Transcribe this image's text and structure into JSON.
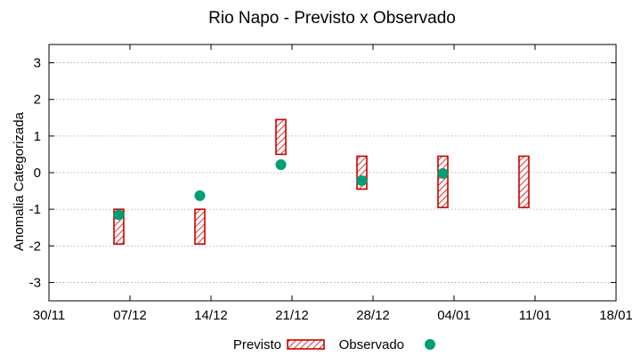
{
  "chart_data": {
    "type": "range_and_scatter",
    "title": "Rio Napo - Previsto x Observado",
    "xlabel": "",
    "ylabel": "Anomalia Categorizada",
    "x_ticks": [
      "30/11",
      "07/12",
      "14/12",
      "21/12",
      "28/12",
      "04/01",
      "11/01",
      "18/01"
    ],
    "y_ticks": [
      "3",
      "2",
      "1",
      "0",
      "-1",
      "-2",
      "-3"
    ],
    "ylim": [
      -3.5,
      3.5
    ],
    "grid": "horizontal dotted",
    "legend_position": "bottom",
    "series": [
      {
        "name": "Previsto",
        "style": "hatched-box",
        "color": "#cc0000",
        "points": [
          {
            "x": "07/12",
            "low": -1.95,
            "high": -1.0
          },
          {
            "x": "14/12",
            "low": -1.95,
            "high": -1.0
          },
          {
            "x": "21/12",
            "low": 0.5,
            "high": 1.45
          },
          {
            "x": "28/12",
            "low": -0.45,
            "high": 0.45
          },
          {
            "x": "04/01",
            "low": -0.95,
            "high": 0.45
          },
          {
            "x": "11/01",
            "low": -0.95,
            "high": 0.45
          }
        ]
      },
      {
        "name": "Observado",
        "style": "dot",
        "color": "#009e73",
        "points": [
          {
            "x": "07/12",
            "y": -1.15
          },
          {
            "x": "14/12",
            "y": -0.63
          },
          {
            "x": "21/12",
            "y": 0.22
          },
          {
            "x": "28/12",
            "y": -0.22
          },
          {
            "x": "04/01",
            "y": -0.02
          }
        ]
      }
    ]
  }
}
